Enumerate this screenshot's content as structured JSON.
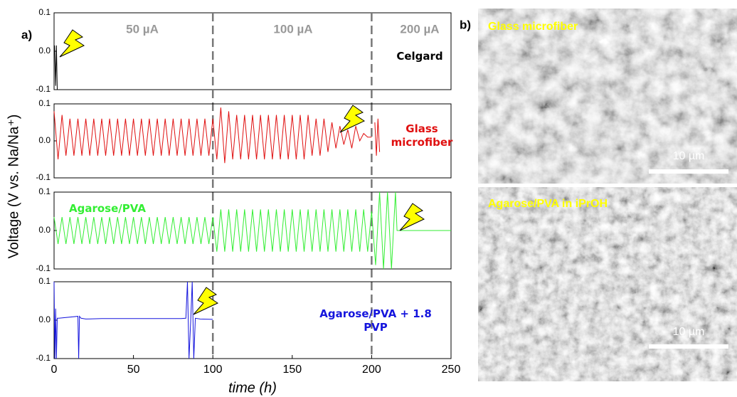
{
  "panel_labels": [
    "a)",
    "b)"
  ],
  "images": [
    {
      "caption": "Glass microfiber",
      "scale_label": "10 µm"
    },
    {
      "caption": "Agarose/PVA in iPrOH",
      "scale_label": "10 µm"
    }
  ],
  "chart_data": [
    {
      "type": "line",
      "xlim": [
        0,
        250
      ],
      "ylim": [
        -0.1,
        0.1
      ],
      "yticks": [
        -0.1,
        {
          "value": 0,
          "label": "0.0"
        },
        0.1
      ],
      "annotations": [
        "50 µA",
        "100 µA",
        "200 µA"
      ],
      "vlines": [
        100,
        200
      ],
      "series": [
        {
          "name": "Celgard",
          "color": "#000000",
          "x": [
            0,
            0.3,
            1,
            1.5,
            2,
            2.5
          ],
          "values": [
            0.0,
            0.015,
            -0.09,
            0.015,
            -0.1,
            -0.1
          ]
        }
      ]
    },
    {
      "type": "line",
      "xlim": [
        0,
        250
      ],
      "ylim": [
        -0.1,
        0.1
      ],
      "yticks": [
        -0.1,
        {
          "value": 0,
          "label": "0.0"
        },
        0.1
      ],
      "series": [
        {
          "name": "Glass microfiber",
          "color": "#e01010",
          "x": [
            0,
            2.5,
            5,
            7.5,
            10,
            12.5,
            15,
            17.5,
            20,
            22.5,
            25,
            27.5,
            30,
            32.5,
            35,
            37.5,
            40,
            42.5,
            45,
            47.5,
            50,
            52.5,
            55,
            57.5,
            60,
            62.5,
            65,
            67.5,
            70,
            72.5,
            75,
            77.5,
            80,
            82.5,
            85,
            87.5,
            90,
            92.5,
            95,
            97.5,
            100,
            102.5,
            105,
            107.5,
            110,
            112.5,
            115,
            117.5,
            120,
            122.5,
            125,
            127.5,
            130,
            132.5,
            135,
            137.5,
            140,
            142.5,
            145,
            147.5,
            150,
            152.5,
            155,
            157.5,
            160,
            162.5,
            165,
            167.5,
            170,
            172.5,
            175,
            177.5,
            180,
            182.5,
            185,
            187.5,
            190,
            192.5,
            195,
            197.5,
            200,
            201,
            202,
            203,
            204,
            205
          ],
          "values": [
            0.08,
            -0.05,
            0.07,
            -0.04,
            0.06,
            -0.04,
            0.06,
            -0.04,
            0.06,
            -0.04,
            0.06,
            -0.04,
            0.06,
            -0.04,
            0.06,
            -0.04,
            0.06,
            -0.04,
            0.06,
            -0.04,
            0.06,
            -0.04,
            0.06,
            -0.04,
            0.06,
            -0.04,
            0.06,
            -0.04,
            0.06,
            -0.04,
            0.06,
            -0.04,
            0.06,
            -0.04,
            0.06,
            -0.04,
            0.06,
            -0.04,
            0.06,
            -0.04,
            0.06,
            -0.05,
            0.09,
            -0.06,
            0.08,
            -0.05,
            0.07,
            -0.05,
            0.07,
            -0.05,
            0.07,
            -0.05,
            0.07,
            -0.05,
            0.07,
            -0.05,
            0.07,
            -0.05,
            0.07,
            -0.05,
            0.07,
            -0.05,
            0.07,
            -0.05,
            0.07,
            -0.04,
            0.06,
            -0.04,
            0.06,
            -0.03,
            0.05,
            -0.02,
            0.04,
            -0.01,
            0.03,
            -0.02,
            0.04,
            0.0,
            0.02,
            0.01,
            0.01,
            null,
            0.05,
            -0.04,
            0.06,
            -0.03
          ]
        }
      ]
    },
    {
      "type": "line",
      "xlim": [
        0,
        250
      ],
      "ylim": [
        -0.1,
        0.1
      ],
      "yticks": [
        -0.1,
        {
          "value": 0,
          "label": "0.0"
        },
        0.1
      ],
      "series": [
        {
          "name": "Agarose/PVA",
          "color": "#33ee33",
          "x": [
            0,
            2.5,
            5,
            7.5,
            10,
            12.5,
            15,
            17.5,
            20,
            22.5,
            25,
            27.5,
            30,
            32.5,
            35,
            37.5,
            40,
            42.5,
            45,
            47.5,
            50,
            52.5,
            55,
            57.5,
            60,
            62.5,
            65,
            67.5,
            70,
            72.5,
            75,
            77.5,
            80,
            82.5,
            85,
            87.5,
            90,
            92.5,
            95,
            97.5,
            100,
            102.5,
            105,
            107.5,
            110,
            112.5,
            115,
            117.5,
            120,
            122.5,
            125,
            127.5,
            130,
            132.5,
            135,
            137.5,
            140,
            142.5,
            145,
            147.5,
            150,
            152.5,
            155,
            157.5,
            160,
            162.5,
            165,
            167.5,
            170,
            172.5,
            175,
            177.5,
            180,
            182.5,
            185,
            187.5,
            190,
            192.5,
            195,
            197.5,
            200,
            202.5,
            205,
            207.5,
            210,
            212.5,
            215,
            216,
            250
          ],
          "values": [
            0.035,
            -0.035,
            0.035,
            -0.035,
            0.035,
            -0.035,
            0.035,
            -0.035,
            0.035,
            -0.035,
            0.035,
            -0.035,
            0.035,
            -0.035,
            0.035,
            -0.035,
            0.035,
            -0.035,
            0.035,
            -0.035,
            0.035,
            -0.035,
            0.035,
            -0.035,
            0.035,
            -0.035,
            0.035,
            -0.035,
            0.035,
            -0.035,
            0.035,
            -0.035,
            0.035,
            -0.035,
            0.035,
            -0.035,
            0.035,
            -0.035,
            0.035,
            -0.035,
            0.035,
            -0.055,
            0.055,
            -0.055,
            0.055,
            -0.055,
            0.055,
            -0.055,
            0.055,
            -0.055,
            0.055,
            -0.055,
            0.055,
            -0.055,
            0.055,
            -0.055,
            0.055,
            -0.055,
            0.055,
            -0.055,
            0.055,
            -0.055,
            0.055,
            -0.055,
            0.055,
            -0.055,
            0.055,
            -0.055,
            0.055,
            -0.055,
            0.055,
            -0.055,
            0.055,
            -0.055,
            0.055,
            -0.055,
            0.055,
            -0.055,
            0.055,
            -0.055,
            0.05,
            -0.09,
            0.1,
            -0.1,
            0.1,
            -0.1,
            0.1,
            0.0,
            0.0
          ]
        }
      ]
    },
    {
      "type": "line",
      "xlim": [
        0,
        250
      ],
      "ylim": [
        -0.1,
        0.1
      ],
      "yticks": [
        -0.1,
        {
          "value": 0,
          "label": "0.0"
        },
        0.1
      ],
      "xticks": [
        0,
        50,
        100,
        150,
        200,
        250
      ],
      "xlabel": "time (h)",
      "ylabel": "Voltage (V vs. Na/Na⁺)",
      "series": [
        {
          "name": "Agarose/PVA + 1.8 PVP",
          "color": "#1515dd",
          "x": [
            0,
            0.5,
            1,
            1.5,
            2,
            3,
            15,
            15.5,
            16,
            17,
            20,
            30,
            40,
            50,
            60,
            70,
            80,
            83,
            84,
            85,
            86,
            87,
            88,
            89,
            92,
            100
          ],
          "values": [
            0.1,
            -0.1,
            0.03,
            -0.1,
            0.005,
            0.005,
            0.01,
            -0.1,
            0.01,
            0.005,
            0.003,
            0.004,
            0.004,
            0.004,
            0.004,
            0.004,
            0.004,
            0.005,
            0.1,
            -0.1,
            -0.005,
            0.1,
            -0.1,
            0.005,
            0.003,
            0.002
          ]
        }
      ]
    }
  ]
}
